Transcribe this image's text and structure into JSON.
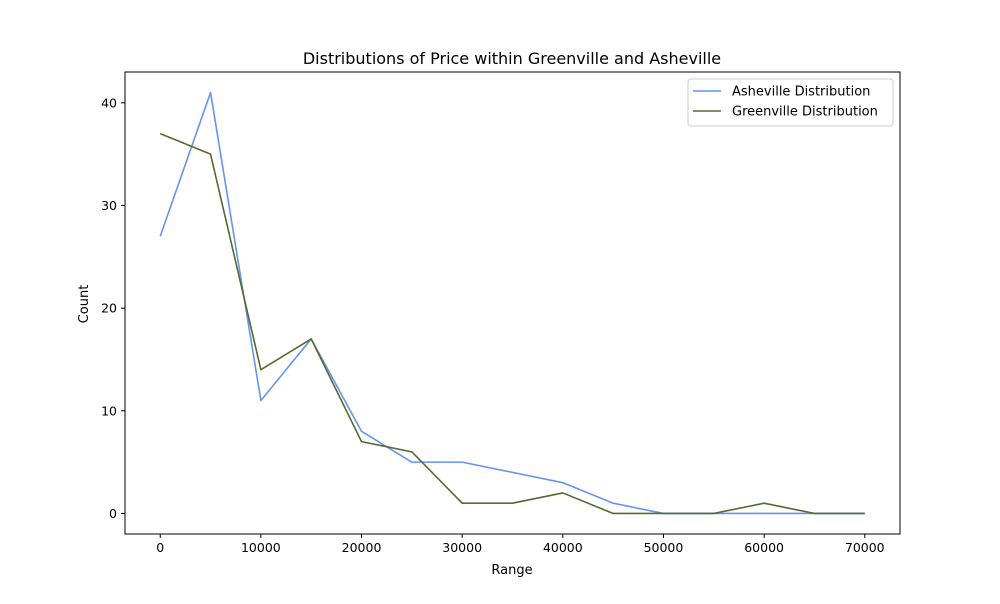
{
  "chart_data": {
    "type": "line",
    "title": "Distributions of Price within Greenville and Asheville",
    "xlabel": "Range",
    "ylabel": "Count",
    "xlim": [
      -3500,
      73500
    ],
    "ylim": [
      -2,
      43
    ],
    "x_ticks": [
      0,
      10000,
      20000,
      30000,
      40000,
      50000,
      60000,
      70000
    ],
    "y_ticks": [
      0,
      10,
      20,
      30,
      40
    ],
    "grid": false,
    "legend_position": "upper-right",
    "x": [
      0,
      5000,
      10000,
      15000,
      20000,
      25000,
      30000,
      35000,
      40000,
      45000,
      50000,
      55000,
      60000,
      65000,
      70000
    ],
    "series": [
      {
        "name": "Asheville Distribution",
        "color": "#6495ED",
        "values": [
          27,
          41,
          11,
          17,
          8,
          5,
          5,
          4,
          3,
          1,
          0,
          0,
          0,
          0,
          0
        ]
      },
      {
        "name": "Greenville Distribution",
        "color": "#556B2F",
        "values": [
          37,
          35,
          14,
          17,
          7,
          6,
          1,
          1,
          2,
          0,
          0,
          0,
          1,
          0,
          0
        ]
      }
    ]
  }
}
